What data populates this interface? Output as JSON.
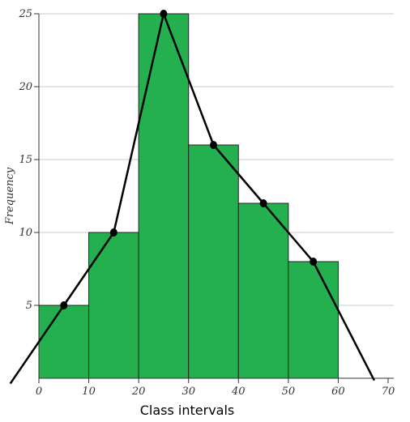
{
  "chart_data": {
    "type": "bar",
    "title": "",
    "xlabel": "Class intervals",
    "ylabel": "Frequency",
    "xlim": [
      0,
      70
    ],
    "ylim": [
      0,
      25
    ],
    "xticks": [
      0,
      10,
      20,
      30,
      40,
      50,
      60,
      70
    ],
    "yticks": [
      5,
      10,
      15,
      20,
      25
    ],
    "grid": true,
    "bar_color": "#25b04f",
    "histogram": {
      "bin_edges": [
        0,
        10,
        20,
        30,
        40,
        50,
        60
      ],
      "frequencies": [
        5,
        10,
        25,
        16,
        12,
        8
      ]
    },
    "frequency_polygon": {
      "x": [
        -5,
        5,
        15,
        25,
        35,
        45,
        55,
        67
      ],
      "y": [
        0,
        5,
        10,
        25,
        16,
        12,
        8,
        0
      ]
    }
  }
}
